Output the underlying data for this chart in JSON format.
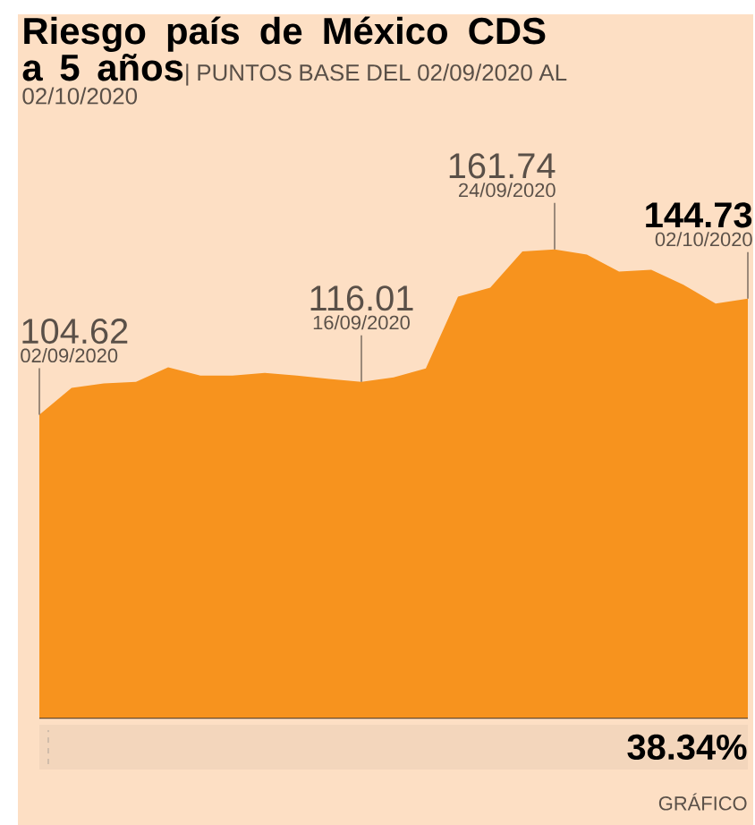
{
  "chart_data": {
    "type": "area",
    "title": "Riesgo país de México CDS a 5 años",
    "subtitle": "| PUNTOS BASE DEL 02/09/2020 AL 02/10/2020",
    "categories": [
      null,
      null,
      null,
      null,
      null,
      null,
      null,
      null,
      null,
      null,
      null,
      null,
      null,
      null,
      null,
      null,
      null,
      null,
      null,
      null,
      null,
      null,
      null
    ],
    "values": [
      104.62,
      113.9,
      115.4,
      116.0,
      121.0,
      118.1,
      118.1,
      119.1,
      118.1,
      117.0,
      116.01,
      117.5,
      120.6,
      145.4,
      148.5,
      161.0,
      161.74,
      159.9,
      154.1,
      154.7,
      149.5,
      143.0,
      144.73
    ],
    "value_labels": [
      "104.62",
      null,
      null,
      null,
      null,
      null,
      null,
      null,
      null,
      null,
      "116.01",
      null,
      null,
      null,
      null,
      null,
      "161.74",
      null,
      null,
      null,
      null,
      null,
      "**144.73**"
    ],
    "color": "#f7931e",
    "annotations": [
      "02/09/2020",
      "16/09/2020",
      "24/09/2020",
      "02/10/2020",
      "38.34%",
      "GRÁFICO"
    ]
  }
}
